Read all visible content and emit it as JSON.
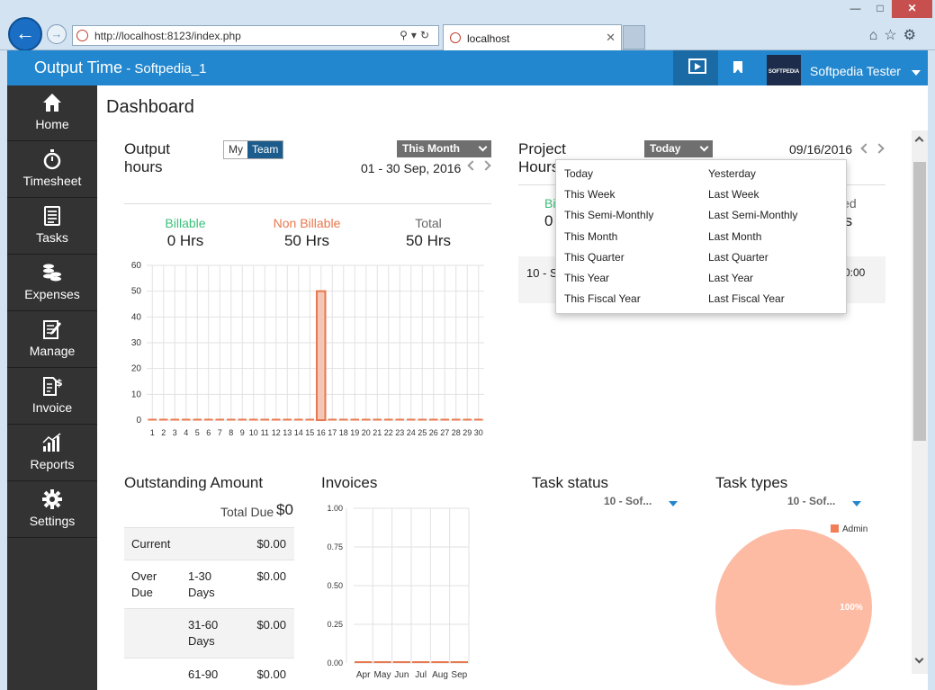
{
  "browser": {
    "url": "http://localhost:8123/index.php",
    "tab_title": "localhost"
  },
  "header": {
    "app_name": "Output Time",
    "company": " - Softpedia_1",
    "avatar_text": "SOFTPEDIA",
    "user_name": "Softpedia Tester"
  },
  "sidebar": {
    "items": [
      {
        "label": "Home",
        "icon": "home-icon"
      },
      {
        "label": "Timesheet",
        "icon": "stopwatch-icon"
      },
      {
        "label": "Tasks",
        "icon": "tasks-icon"
      },
      {
        "label": "Expenses",
        "icon": "coins-icon"
      },
      {
        "label": "Manage",
        "icon": "manage-icon"
      },
      {
        "label": "Invoice",
        "icon": "invoice-icon"
      },
      {
        "label": "Reports",
        "icon": "reports-icon"
      },
      {
        "label": "Settings",
        "icon": "gear-icon"
      }
    ]
  },
  "page": {
    "title": "Dashboard"
  },
  "output_hours": {
    "title": "Output hours",
    "toggle_my": "My",
    "toggle_team": "Team",
    "period": "This Month",
    "range": "01 - 30 Sep, 2016",
    "billable_label": "Billable",
    "billable_value": "0 Hrs",
    "nonbillable_label": "Non Billable",
    "nonbillable_value": "50 Hrs",
    "total_label": "Total",
    "total_value": "50 Hrs"
  },
  "project_hours": {
    "title": "Project Hours",
    "period": "Today",
    "date": "09/16/2016",
    "billable_label": "Bi",
    "billable_value": "0",
    "invoiced_label": "iced",
    "invoiced_value": "rs",
    "row_name": "10 - S",
    "row_value": "0:00"
  },
  "dropdown": {
    "left": [
      "Today",
      "This Week",
      "This Semi-Monthly",
      "This Month",
      "This Quarter",
      "This Year",
      "This Fiscal Year"
    ],
    "right": [
      "Yesterday",
      "Last Week",
      "Last Semi-Monthly",
      "Last Month",
      "Last Quarter",
      "Last Year",
      "Last Fiscal Year"
    ]
  },
  "outstanding": {
    "title": "Outstanding Amount",
    "total_due_label": "Total Due",
    "total_due_value": "$0",
    "rows": [
      {
        "c1": "Current",
        "c2": "",
        "c3": "$0.00"
      },
      {
        "c1": "Over Due",
        "c2": "1-30 Days",
        "c3": "$0.00"
      },
      {
        "c1": "",
        "c2": "31-60 Days",
        "c3": "$0.00"
      },
      {
        "c1": "",
        "c2": "61-90",
        "c3": "$0.00"
      }
    ]
  },
  "invoices": {
    "title": "Invoices"
  },
  "task_status": {
    "title": "Task status",
    "select": "10 - Sof..."
  },
  "task_types": {
    "title": "Task types",
    "select": "10 - Sof..."
  },
  "chart_data": [
    {
      "type": "bar",
      "categories": [
        "1",
        "2",
        "3",
        "4",
        "5",
        "6",
        "7",
        "8",
        "9",
        "10",
        "11",
        "12",
        "13",
        "14",
        "15",
        "16",
        "17",
        "18",
        "19",
        "20",
        "21",
        "22",
        "23",
        "24",
        "25",
        "26",
        "27",
        "28",
        "29",
        "30"
      ],
      "series": [
        {
          "values": [
            0,
            0,
            0,
            0,
            0,
            0,
            0,
            0,
            0,
            0,
            0,
            0,
            0,
            0,
            0,
            50,
            0,
            0,
            0,
            0,
            0,
            0,
            0,
            0,
            0,
            0,
            0,
            0,
            0,
            0
          ]
        }
      ],
      "ylim": [
        0,
        60
      ],
      "yticks": [
        0,
        10,
        20,
        30,
        40,
        50,
        60
      ],
      "grid": true,
      "colors": {
        "nonbillable": "#f4c6b6",
        "stroke": "#e8784d",
        "billable": "#3ac17a"
      }
    },
    {
      "type": "bar",
      "categories": [
        "Apr",
        "May",
        "Jun",
        "Jul",
        "Aug",
        "Sep"
      ],
      "series": [
        {
          "values": [
            0,
            0,
            0,
            0,
            0,
            0
          ]
        }
      ],
      "ylim": [
        0,
        1
      ],
      "yticks": [
        "0.00",
        "0.25",
        "0.50",
        "0.75",
        "1.00"
      ],
      "grid": true,
      "colors": {
        "bar": "#e8784d"
      }
    },
    {
      "type": "pie",
      "legend": [
        "Admin"
      ],
      "values": [
        100
      ],
      "slice_labels": [
        "100%"
      ],
      "legend_position": "top-right",
      "colors": {
        "slice": "#fdbba4",
        "legend": "#f27e57"
      }
    }
  ]
}
